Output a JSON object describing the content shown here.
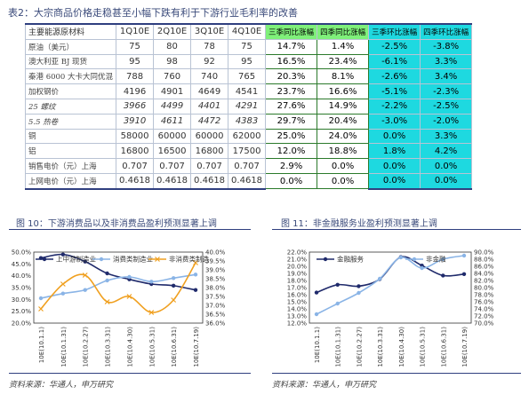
{
  "table": {
    "title": "表2：大宗商品价格走稳甚至小幅下跌有利于下游行业毛利率的改善",
    "headers": [
      "主要能源原材料",
      "1Q10E",
      "2Q10E",
      "3Q10E",
      "4Q10E",
      "三季同比涨幅",
      "四季同比涨幅",
      "三季环比涨幅",
      "四季环比涨幅"
    ],
    "rows": [
      {
        "name": "原油（美元）",
        "italic": false,
        "q": [
          "75",
          "80",
          "78",
          "75"
        ],
        "g": [
          "14.7%",
          "1.4%"
        ],
        "c": [
          "-2.5%",
          "-3.8%"
        ]
      },
      {
        "name": "澳大利亚 BJ 现货",
        "italic": false,
        "q": [
          "95",
          "98",
          "92",
          "95"
        ],
        "g": [
          "16.5%",
          "23.4%"
        ],
        "c": [
          "-6.1%",
          "3.3%"
        ]
      },
      {
        "name": "秦港 6000 大卡大同优混",
        "italic": false,
        "q": [
          "788",
          "760",
          "740",
          "765"
        ],
        "g": [
          "20.3%",
          "8.1%"
        ],
        "c": [
          "-2.6%",
          "3.4%"
        ]
      },
      {
        "name": "加权钢价",
        "italic": false,
        "q": [
          "4196",
          "4901",
          "4649",
          "4541"
        ],
        "g": [
          "23.7%",
          "16.6%"
        ],
        "c": [
          "-5.1%",
          "-2.3%"
        ]
      },
      {
        "name": "25 螺纹",
        "italic": true,
        "q": [
          "3966",
          "4499",
          "4401",
          "4291"
        ],
        "g": [
          "27.6%",
          "14.9%"
        ],
        "c": [
          "-2.2%",
          "-2.5%"
        ]
      },
      {
        "name": "5.5 热卷",
        "italic": true,
        "q": [
          "3910",
          "4611",
          "4472",
          "4383"
        ],
        "g": [
          "29.7%",
          "20.4%"
        ],
        "c": [
          "-3.0%",
          "-2.0%"
        ]
      },
      {
        "name": "铜",
        "italic": false,
        "q": [
          "58000",
          "60000",
          "60000",
          "62000"
        ],
        "g": [
          "25.0%",
          "24.0%"
        ],
        "c": [
          "0.0%",
          "3.3%"
        ]
      },
      {
        "name": "铝",
        "italic": false,
        "q": [
          "16800",
          "16500",
          "16800",
          "17500"
        ],
        "g": [
          "12.0%",
          "18.8%"
        ],
        "c": [
          "1.8%",
          "4.2%"
        ]
      },
      {
        "name": "销售电价（元）上海",
        "italic": false,
        "q": [
          "0.707",
          "0.707",
          "0.707",
          "0.707"
        ],
        "g": [
          "2.9%",
          "0.0%"
        ],
        "c": [
          "0.0%",
          "0.0%"
        ]
      },
      {
        "name": "上网电价（元）上海",
        "italic": false,
        "q": [
          "0.4618",
          "0.4618",
          "0.4618",
          "0.4618"
        ],
        "g": [
          "0.0%",
          "0.0%"
        ],
        "c": [
          "0.0%",
          "0.0%"
        ]
      }
    ]
  },
  "fig10": {
    "title": "图 10：下游消费品以及非消费品盈利预测显著上调",
    "source": "资料来源：华通人，申万研究"
  },
  "fig11": {
    "title": "图 11：非金融服务业盈利预测显著上调",
    "source": "资料来源：华通人，申万研究"
  },
  "chart_data": [
    {
      "type": "line",
      "categories": [
        "10E(10.1.1)",
        "10E(10.1.31)",
        "10E(10.2.27)",
        "10E(10.3.31)",
        "10E(10.4.30)",
        "10E(10.5.31)",
        "10E(10.6.31)",
        "10E(10.7.19)"
      ],
      "left_ticks": [
        "50.0%",
        "45.0%",
        "40.0%",
        "35.0%",
        "30.0%",
        "25.0%",
        "20.0%"
      ],
      "right_ticks": [
        "40.0%",
        "39.5%",
        "39.0%",
        "38.5%",
        "38.0%",
        "37.5%",
        "37.0%",
        "36.5%",
        "36.0%"
      ],
      "ylim_left": [
        20,
        50
      ],
      "ylim_right": [
        36,
        40
      ],
      "series": [
        {
          "name": "上中游制造业",
          "axis": "left",
          "color": "#1f2a6b",
          "values": [
            47.5,
            49.0,
            46.0,
            41.0,
            38.5,
            36.5,
            35.8,
            34.0
          ]
        },
        {
          "name": "消费类制造业",
          "axis": "left",
          "color": "#8ab4e6",
          "values": [
            30.5,
            32.5,
            34.0,
            38.0,
            39.5,
            37.5,
            39.0,
            40.5
          ]
        },
        {
          "name": "非消费类制造",
          "axis": "right",
          "color": "#f0a020",
          "values": [
            36.8,
            38.2,
            38.7,
            37.2,
            37.5,
            36.6,
            37.3,
            39.4
          ]
        }
      ]
    },
    {
      "type": "line",
      "categories": [
        "10E(10.1.1)",
        "10E(10.1.31)",
        "10E(10.2.27)",
        "10E(10.3.31)",
        "10E(10.4.30)",
        "10E(10.5.31)",
        "10E(10.6.31)",
        "10E(10.7.19)"
      ],
      "left_ticks": [
        "22.0%",
        "21.0%",
        "20.0%",
        "19.0%",
        "18.0%",
        "17.0%",
        "16.0%",
        "15.0%",
        "14.0%",
        "13.0%",
        "12.0%"
      ],
      "right_ticks": [
        "90.0%",
        "88.0%",
        "86.0%",
        "84.0%",
        "82.0%",
        "80.0%",
        "78.0%",
        "76.0%",
        "74.0%",
        "72.0%",
        "70.0%"
      ],
      "ylim_left": [
        12,
        22
      ],
      "ylim_right": [
        70,
        90
      ],
      "series": [
        {
          "name": "金融服务",
          "axis": "left",
          "color": "#1f2a6b",
          "values": [
            16.3,
            17.4,
            17.2,
            18.2,
            21.3,
            20.1,
            18.7,
            18.9
          ]
        },
        {
          "name": "非金融",
          "axis": "right",
          "color": "#8ab4e6",
          "values": [
            72.5,
            75.5,
            78.5,
            82.5,
            88.5,
            85.5,
            88.0,
            89.0
          ]
        }
      ]
    }
  ]
}
